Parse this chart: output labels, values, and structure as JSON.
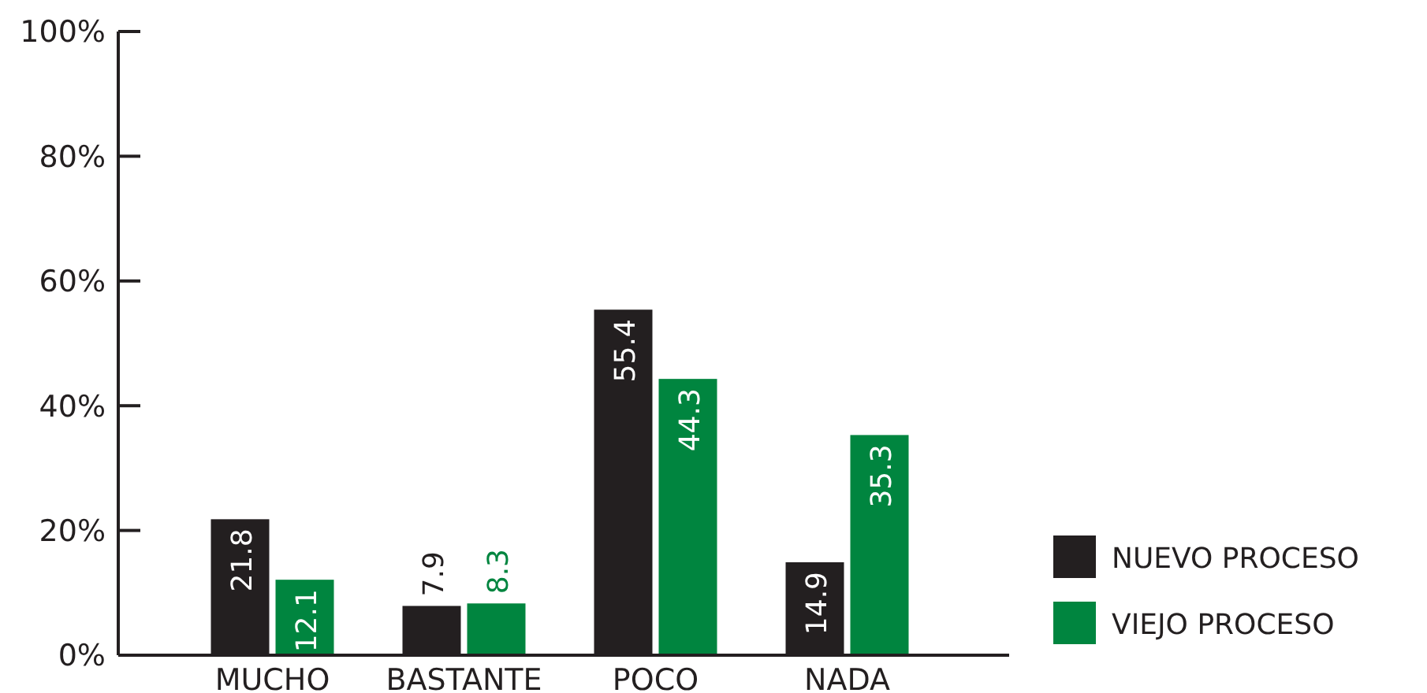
{
  "chart_data": {
    "type": "bar",
    "categories": [
      "MUCHO",
      "BASTANTE",
      "POCO",
      "NADA"
    ],
    "series": [
      {
        "name": "NUEVO PROCESO",
        "color": "#231f20",
        "values": [
          21.8,
          7.9,
          55.4,
          14.9
        ]
      },
      {
        "name": "VIEJO PROCESO",
        "color": "#00853f",
        "values": [
          12.1,
          8.3,
          44.3,
          35.3
        ]
      }
    ],
    "ylim": [
      0,
      100
    ],
    "yticks": [
      {
        "value": 0,
        "label": "0%"
      },
      {
        "value": 20,
        "label": "20%"
      },
      {
        "value": 40,
        "label": "40%"
      },
      {
        "value": 60,
        "label": "60%"
      },
      {
        "value": 80,
        "label": "80%"
      },
      {
        "value": 100,
        "label": "100%"
      }
    ],
    "data_labels": true,
    "legend": "right",
    "grid": false
  }
}
